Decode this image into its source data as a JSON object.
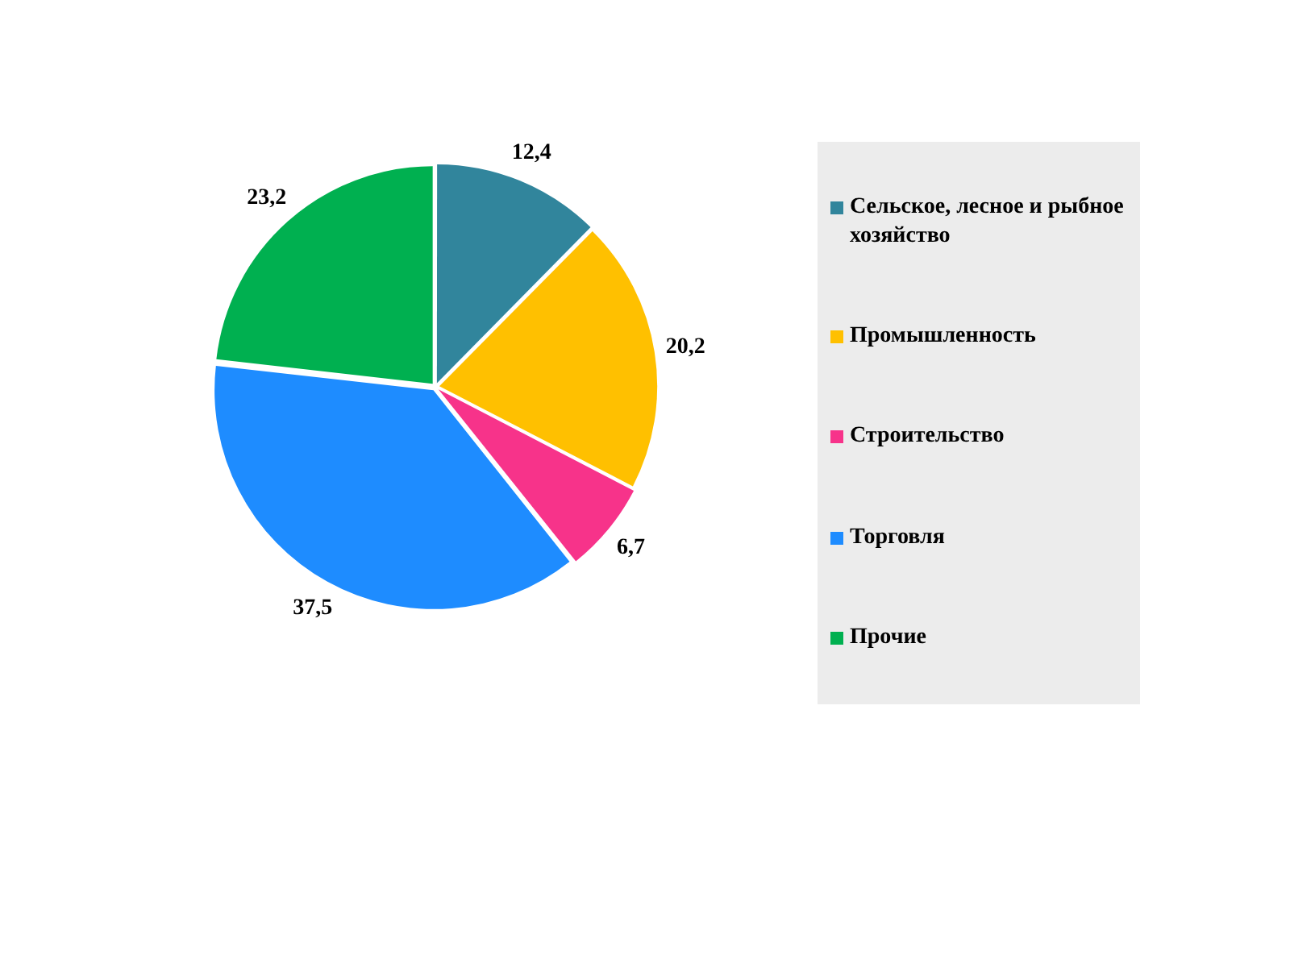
{
  "chart_data": {
    "type": "pie",
    "categories": [
      "Сельское, лесное и рыбное хозяйство",
      "Промышленность",
      "Строительство",
      "Торговля",
      "Прочие"
    ],
    "values": [
      12.4,
      20.2,
      6.7,
      37.5,
      23.2
    ],
    "colors": [
      "#31859c",
      "#ffc000",
      "#f7338a",
      "#1e8cff",
      "#00b050"
    ],
    "value_labels": [
      "12,4",
      "20,2",
      "6,7",
      "37,5",
      "23,2"
    ],
    "legend": "right"
  }
}
